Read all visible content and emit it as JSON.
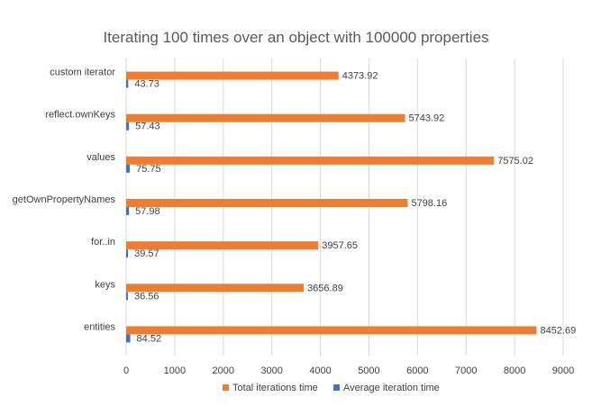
{
  "chart_data": {
    "type": "bar",
    "orientation": "horizontal",
    "title": "Iterating 100 times over an object with 100000 properties",
    "categories": [
      "entities",
      "keys",
      "for..in",
      "getOwnPropertyNames",
      "values",
      "reflect.ownKeys",
      "custom iterator"
    ],
    "series": [
      {
        "name": "Total iterations time",
        "color": "#ED7D31",
        "values": [
          8452.69,
          3656.89,
          3957.65,
          5798.16,
          7575.02,
          5743.92,
          4373.92
        ],
        "labels": [
          "8452.69",
          "3656.89",
          "3957.65",
          "5798.16",
          "7575.02",
          "5743.92",
          "4373.92"
        ]
      },
      {
        "name": "Average iteration time",
        "color": "#4472C4",
        "values": [
          84.52,
          36.56,
          39.57,
          57.98,
          75.75,
          57.43,
          43.73
        ],
        "labels": [
          "84.52",
          "36.56",
          "39.57",
          "57.98",
          "75.75",
          "57.43",
          "43.73"
        ]
      }
    ],
    "xlim": [
      0,
      9000
    ],
    "xticks": [
      0,
      1000,
      2000,
      3000,
      4000,
      5000,
      6000,
      7000,
      8000,
      9000
    ],
    "xtick_labels": [
      "0",
      "1000",
      "2000",
      "3000",
      "4000",
      "5000",
      "6000",
      "7000",
      "8000",
      "9000"
    ],
    "grid": true,
    "legend": "bottom",
    "gridline_color": "#D9D9D9"
  }
}
